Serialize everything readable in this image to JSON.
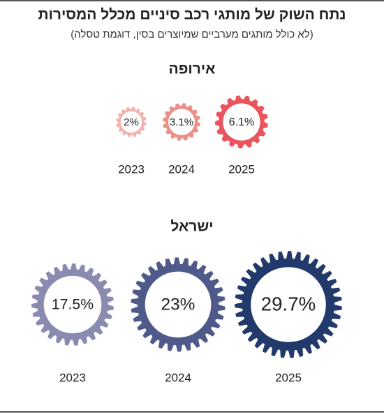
{
  "title": "נתח השוק של מותגי רכב סיניים מכלל המסירות",
  "subtitle": "(לא כולל מותגים מערביים שמיוצרים בסין, דוגמת טסלה)",
  "chart_data": [
    {
      "type": "gear",
      "title": "אירופה",
      "categories": [
        "2023",
        "2024",
        "2025"
      ],
      "values": [
        2,
        3.1,
        6.1
      ],
      "value_labels": [
        "2%",
        "3.1%",
        "6.1%"
      ],
      "colors": [
        "#f2b3ae",
        "#ef8e88",
        "#e9545d"
      ]
    },
    {
      "type": "gear",
      "title": "ישראל",
      "categories": [
        "2023",
        "2024",
        "2025"
      ],
      "values": [
        17.5,
        23,
        29.7
      ],
      "value_labels": [
        "17.5%",
        "23%",
        "29.7%"
      ],
      "colors": [
        "#8a8bb0",
        "#4f5a8a",
        "#213a6b"
      ]
    }
  ]
}
